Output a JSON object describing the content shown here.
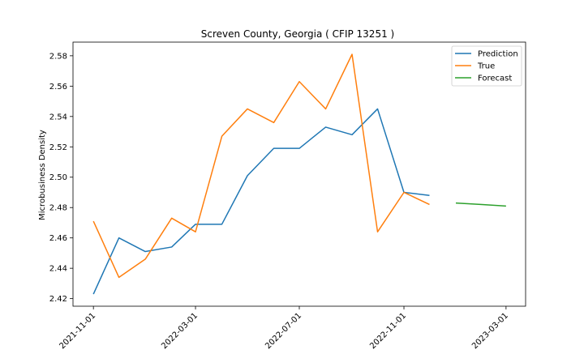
{
  "chart_data": {
    "type": "line",
    "title": "Screven County, Georgia ( CFIP 13251 )",
    "xlabel": "",
    "ylabel": "Microbusiness Density",
    "ylim": [
      2.415,
      2.589
    ],
    "xlim": [
      "2021-10-08",
      "2023-03-24"
    ],
    "x_ticks": [
      "2021-11-01",
      "2022-03-01",
      "2022-07-01",
      "2022-11-01",
      "2023-03-01"
    ],
    "y_ticks": [
      2.42,
      2.44,
      2.46,
      2.48,
      2.5,
      2.52,
      2.54,
      2.56,
      2.58
    ],
    "legend_position": "top-right",
    "grid": false,
    "series": [
      {
        "name": "Prediction",
        "color": "#1f77b4",
        "x": [
          "2021-11-01",
          "2021-12-01",
          "2022-01-01",
          "2022-02-01",
          "2022-03-01",
          "2022-04-01",
          "2022-05-01",
          "2022-06-01",
          "2022-07-01",
          "2022-08-01",
          "2022-09-01",
          "2022-10-01",
          "2022-11-01",
          "2022-12-01"
        ],
        "values": [
          2.423,
          2.46,
          2.451,
          2.454,
          2.469,
          2.469,
          2.501,
          2.519,
          2.519,
          2.533,
          2.528,
          2.545,
          2.49,
          2.488
        ]
      },
      {
        "name": "True",
        "color": "#ff7f0e",
        "x": [
          "2021-11-01",
          "2021-12-01",
          "2022-01-01",
          "2022-02-01",
          "2022-03-01",
          "2022-04-01",
          "2022-05-01",
          "2022-06-01",
          "2022-07-01",
          "2022-08-01",
          "2022-09-01",
          "2022-10-01",
          "2022-11-01",
          "2022-12-01"
        ],
        "values": [
          2.471,
          2.434,
          2.446,
          2.473,
          2.464,
          2.527,
          2.545,
          2.536,
          2.563,
          2.545,
          2.581,
          2.464,
          2.49,
          2.482
        ]
      },
      {
        "name": "Forecast",
        "color": "#2ca02c",
        "x": [
          "2023-01-01",
          "2023-02-01",
          "2023-03-01"
        ],
        "values": [
          2.483,
          2.482,
          2.481
        ]
      }
    ]
  }
}
